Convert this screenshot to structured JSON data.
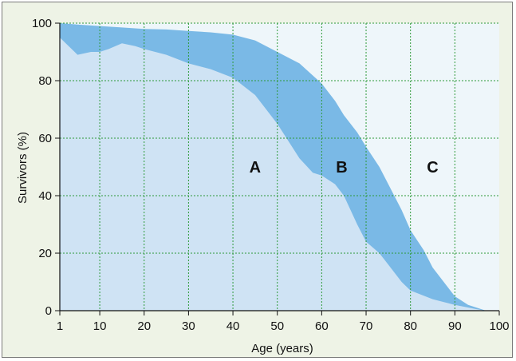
{
  "chart_data": {
    "type": "area",
    "title": "",
    "xlabel": "Age (years)",
    "ylabel": "Survivors (%)",
    "xlim": [
      1,
      100
    ],
    "ylim": [
      0,
      100
    ],
    "xticks": [
      1,
      10,
      20,
      30,
      40,
      50,
      60,
      70,
      80,
      90,
      100
    ],
    "yticks": [
      0,
      20,
      40,
      60,
      80,
      100
    ],
    "grid": true,
    "series": [
      {
        "name": "A",
        "x": [
          1,
          3,
          5,
          8,
          10,
          12,
          15,
          18,
          20,
          25,
          30,
          35,
          40,
          45,
          50,
          55,
          58,
          60,
          63,
          65,
          68,
          70,
          73,
          75,
          78,
          80,
          85,
          90,
          95,
          97
        ],
        "values": [
          95,
          92,
          89,
          90,
          90,
          91,
          93,
          92,
          91,
          89,
          86,
          84,
          81,
          75,
          65,
          53,
          48,
          47,
          44,
          40,
          30,
          24,
          20,
          16,
          10,
          7,
          4,
          2,
          0.5,
          0
        ]
      },
      {
        "name": "B",
        "x": [
          1,
          5,
          10,
          15,
          20,
          25,
          30,
          35,
          40,
          45,
          50,
          55,
          60,
          63,
          65,
          68,
          70,
          73,
          75,
          78,
          80,
          83,
          85,
          88,
          90,
          93,
          95,
          97
        ],
        "values": [
          100,
          99.5,
          99,
          98.5,
          98,
          97.8,
          97.3,
          96.8,
          96,
          94,
          90,
          86,
          79,
          73,
          68,
          62,
          57,
          50,
          44,
          35,
          28,
          21,
          15,
          9,
          5,
          2,
          1,
          0
        ]
      }
    ],
    "region_labels": [
      {
        "text": "A",
        "x": 45,
        "y": 50
      },
      {
        "text": "B",
        "x": 64.5,
        "y": 50
      },
      {
        "text": "C",
        "x": 85,
        "y": 50
      }
    ],
    "colors": {
      "background": "#eef3e6",
      "region_c": "#eef6fa",
      "region_b": "#7ab9e6",
      "region_a": "#cfe3f4",
      "grid": "#2e9a3a"
    }
  }
}
